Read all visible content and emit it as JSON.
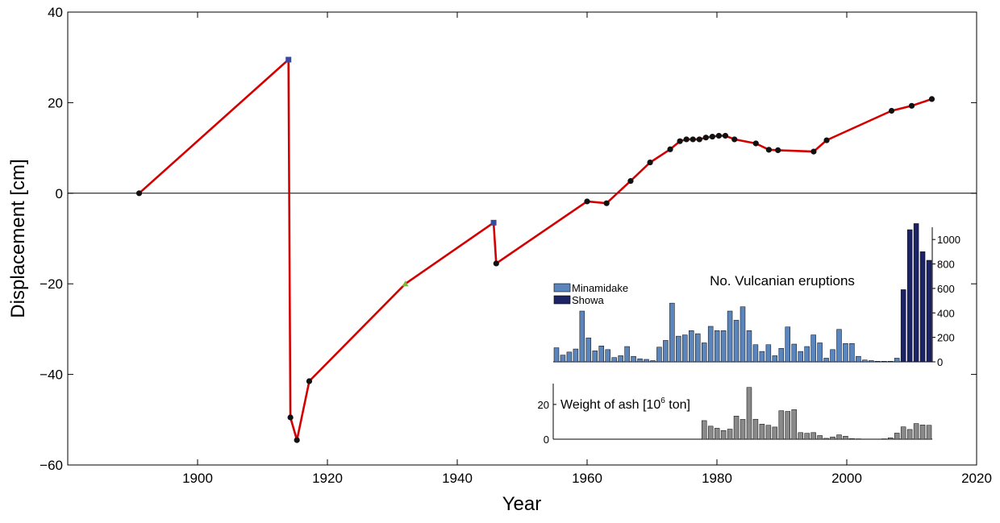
{
  "chart_data": [
    {
      "type": "line",
      "xlabel": "Year",
      "ylabel": "Displacement [cm]",
      "xlim": [
        1880,
        2020
      ],
      "ylim": [
        -60,
        40
      ],
      "x_ticks": [
        "1900",
        "1920",
        "1940",
        "1960",
        "1980",
        "2000",
        "2020"
      ],
      "y_ticks": [
        "−60",
        "−40",
        "−20",
        "0",
        "20",
        "40"
      ],
      "zero_line": true,
      "grid": false,
      "line_color": "#d40000",
      "series": [
        {
          "x": [
            1891.0,
            1914.0,
            1914.3,
            1915.3,
            1917.2,
            1932.0,
            1945.6,
            1946.0,
            1960.0,
            1963.0,
            1966.7,
            1969.7,
            1972.8,
            1974.3,
            1975.3,
            1976.3,
            1977.3,
            1978.3,
            1979.3,
            1980.3,
            1981.3,
            1982.7,
            1986.0,
            1988.0,
            1989.4,
            1994.9,
            1996.9,
            2006.9,
            2010.0,
            2013.1
          ],
          "y": [
            0,
            29.5,
            -49.5,
            -54.5,
            -41.5,
            -20.0,
            -6.5,
            -15.5,
            -1.8,
            -2.2,
            2.7,
            6.8,
            9.7,
            11.5,
            11.9,
            11.9,
            11.9,
            12.3,
            12.5,
            12.7,
            12.7,
            11.9,
            11.0,
            9.6,
            9.5,
            9.2,
            11.7,
            18.2,
            19.3,
            20.8
          ],
          "markers": [
            "circle",
            "square",
            "circle",
            "circle",
            "circle",
            "triangle",
            "square",
            "circle",
            "circle",
            "circle",
            "circle",
            "circle",
            "circle",
            "circle",
            "circle",
            "circle",
            "circle",
            "circle",
            "circle",
            "circle",
            "circle",
            "circle",
            "circle",
            "circle",
            "circle",
            "circle",
            "circle",
            "circle",
            "circle",
            "circle"
          ],
          "marker_colors": {
            "circle": "#111111",
            "square": "#3a4a9a",
            "triangle": "#7fb53a"
          }
        }
      ]
    },
    {
      "type": "bar",
      "title": "No. Vulcanian eruptions",
      "ylim": [
        0,
        1100
      ],
      "y_ticks": [
        "0",
        "200",
        "400",
        "600",
        "800",
        "1000"
      ],
      "years": [
        1955,
        1956,
        1957,
        1958,
        1959,
        1960,
        1961,
        1962,
        1963,
        1964,
        1965,
        1966,
        1967,
        1968,
        1969,
        1970,
        1971,
        1972,
        1973,
        1974,
        1975,
        1976,
        1977,
        1978,
        1979,
        1980,
        1981,
        1982,
        1983,
        1984,
        1985,
        1986,
        1987,
        1988,
        1989,
        1990,
        1991,
        1992,
        1993,
        1994,
        1995,
        1996,
        1997,
        1998,
        1999,
        2000,
        2001,
        2002,
        2003,
        2004,
        2005,
        2006,
        2007,
        2008,
        2009,
        2010,
        2011,
        2012,
        2013
      ],
      "series": [
        {
          "name": "Minamidake",
          "color": "#5b85bd",
          "values": [
            115,
            55,
            80,
            105,
            415,
            195,
            90,
            130,
            100,
            35,
            50,
            125,
            45,
            25,
            20,
            10,
            120,
            175,
            480,
            210,
            220,
            255,
            230,
            155,
            290,
            255,
            255,
            415,
            340,
            450,
            255,
            140,
            85,
            140,
            50,
            110,
            285,
            145,
            85,
            125,
            220,
            155,
            30,
            100,
            265,
            150,
            150,
            45,
            15,
            10,
            5,
            5,
            5,
            30,
            0,
            0,
            0,
            0,
            0
          ]
        },
        {
          "name": "Showa",
          "color": "#1c2466",
          "values": [
            0,
            0,
            0,
            0,
            0,
            0,
            0,
            0,
            0,
            0,
            0,
            0,
            0,
            0,
            0,
            0,
            0,
            0,
            0,
            0,
            0,
            0,
            0,
            0,
            0,
            0,
            0,
            0,
            0,
            0,
            0,
            0,
            0,
            0,
            0,
            0,
            0,
            0,
            0,
            0,
            0,
            0,
            0,
            0,
            0,
            0,
            0,
            0,
            0,
            0,
            0,
            0,
            0,
            0,
            590,
            1080,
            1130,
            900,
            830
          ]
        }
      ]
    },
    {
      "type": "bar",
      "title_main": "Weight of ash [10",
      "title_exp": "6",
      "title_tail": " ton]",
      "ylim": [
        0,
        32
      ],
      "y_ticks": [
        "0",
        "20"
      ],
      "color": "#8a8a8a",
      "years": [
        1978,
        1979,
        1980,
        1981,
        1982,
        1983,
        1984,
        1985,
        1986,
        1987,
        1988,
        1989,
        1990,
        1991,
        1992,
        1993,
        1994,
        1995,
        1996,
        1997,
        1998,
        1999,
        2000,
        2001,
        2002,
        2003,
        2004,
        2005,
        2006,
        2007,
        2008,
        2009,
        2010,
        2011,
        2012,
        2013
      ],
      "values": [
        10.7,
        7.5,
        6.3,
        5.0,
        5.8,
        13.3,
        11.4,
        29.8,
        11.5,
        8.7,
        8.0,
        7.0,
        16.4,
        16.0,
        17.0,
        3.8,
        3.4,
        3.8,
        2.1,
        0.5,
        1.3,
        2.5,
        1.7,
        0.4,
        0.2,
        0.1,
        0.1,
        0.1,
        0.2,
        0.8,
        3.5,
        7.1,
        5.6,
        9.0,
        8.2,
        8.0
      ]
    }
  ]
}
